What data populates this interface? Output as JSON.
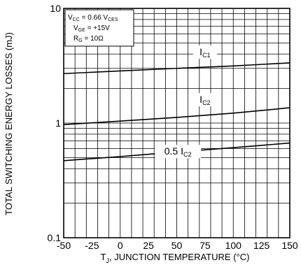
{
  "chart_data": {
    "type": "line",
    "xlabel": "T",
    "xlabel_sub": "J",
    "xlabel_rest": ", JUNCTION TEMPERATURE (°C)",
    "ylabel": "TOTAL SWITCHING ENERGY LOSSES (mJ)",
    "yscale": "log",
    "xlim": [
      -50,
      150
    ],
    "ylim": [
      0.1,
      10
    ],
    "x_ticks": [
      "-50",
      "-25",
      "0",
      "25",
      "50",
      "75",
      "100",
      "125",
      "150"
    ],
    "y_ticks": [
      "0.1",
      "1",
      "10"
    ],
    "grid": true,
    "conditions": [
      {
        "main": "V",
        "sub": "CC",
        "rest": " = 0.66 V",
        "sub2": "CES"
      },
      {
        "main": "V",
        "sub": "GE",
        "rest": " = +15V",
        "sub2": ""
      },
      {
        "main": "R",
        "sub": "G",
        "rest": " = 10Ω",
        "sub2": ""
      }
    ],
    "series": [
      {
        "label_main": "I",
        "label_sub": "C1",
        "label_prefix": "",
        "x": [
          -50,
          0,
          50,
          100,
          150
        ],
        "y": [
          2.7,
          2.85,
          3.0,
          3.15,
          3.35
        ]
      },
      {
        "label_main": "I",
        "label_sub": "C2",
        "label_prefix": "",
        "x": [
          -50,
          0,
          50,
          100,
          150
        ],
        "y": [
          0.97,
          1.04,
          1.12,
          1.22,
          1.36
        ]
      },
      {
        "label_main": "I",
        "label_sub": "C2",
        "label_prefix": "0.5 ",
        "x": [
          -50,
          0,
          50,
          100,
          150
        ],
        "y": [
          0.47,
          0.51,
          0.56,
          0.61,
          0.67
        ]
      }
    ]
  }
}
